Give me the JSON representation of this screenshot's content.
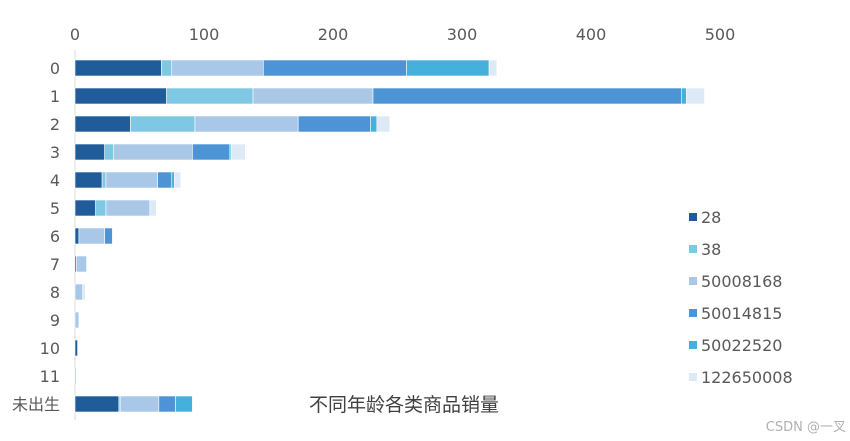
{
  "chart_data": {
    "type": "bar",
    "orientation": "horizontal",
    "stacked": true,
    "title": "不同年龄各类商品销量",
    "xlabel": "",
    "ylabel": "",
    "xlim": [
      0,
      500
    ],
    "x_ticks": [
      "0",
      "100",
      "200",
      "300",
      "400",
      "500"
    ],
    "x_axis_position": "top",
    "grid": false,
    "legend_position": "right",
    "categories": [
      "0",
      "1",
      "2",
      "3",
      "4",
      "5",
      "6",
      "7",
      "8",
      "9",
      "10",
      "11",
      "未出生"
    ],
    "series": [
      {
        "name": "28",
        "color": "#1f5c99",
        "values": [
          67,
          71,
          43,
          23,
          21,
          16,
          3,
          1,
          0,
          0,
          2,
          0,
          34
        ]
      },
      {
        "name": "38",
        "color": "#7ec8e3",
        "values": [
          8,
          67,
          50,
          7,
          3,
          8,
          0,
          0,
          0,
          0,
          0,
          0,
          1
        ]
      },
      {
        "name": "50008168",
        "color": "#a9c8e8",
        "values": [
          71,
          93,
          80,
          61,
          40,
          34,
          20,
          8,
          6,
          3,
          0,
          1,
          30
        ]
      },
      {
        "name": "50014815",
        "color": "#4d94d6",
        "values": [
          111,
          239,
          56,
          29,
          11,
          0,
          6,
          0,
          0,
          0,
          0,
          0,
          13
        ]
      },
      {
        "name": "50022520",
        "color": "#45b0dc",
        "values": [
          64,
          4,
          5,
          1,
          2,
          0,
          0,
          0,
          0,
          0,
          0,
          0,
          13
        ]
      },
      {
        "name": "122650008",
        "color": "#dde9f5",
        "values": [
          6,
          14,
          10,
          11,
          5,
          5,
          0,
          0,
          2,
          0,
          0,
          0,
          0
        ]
      }
    ]
  },
  "watermark": "CSDN @一叉"
}
